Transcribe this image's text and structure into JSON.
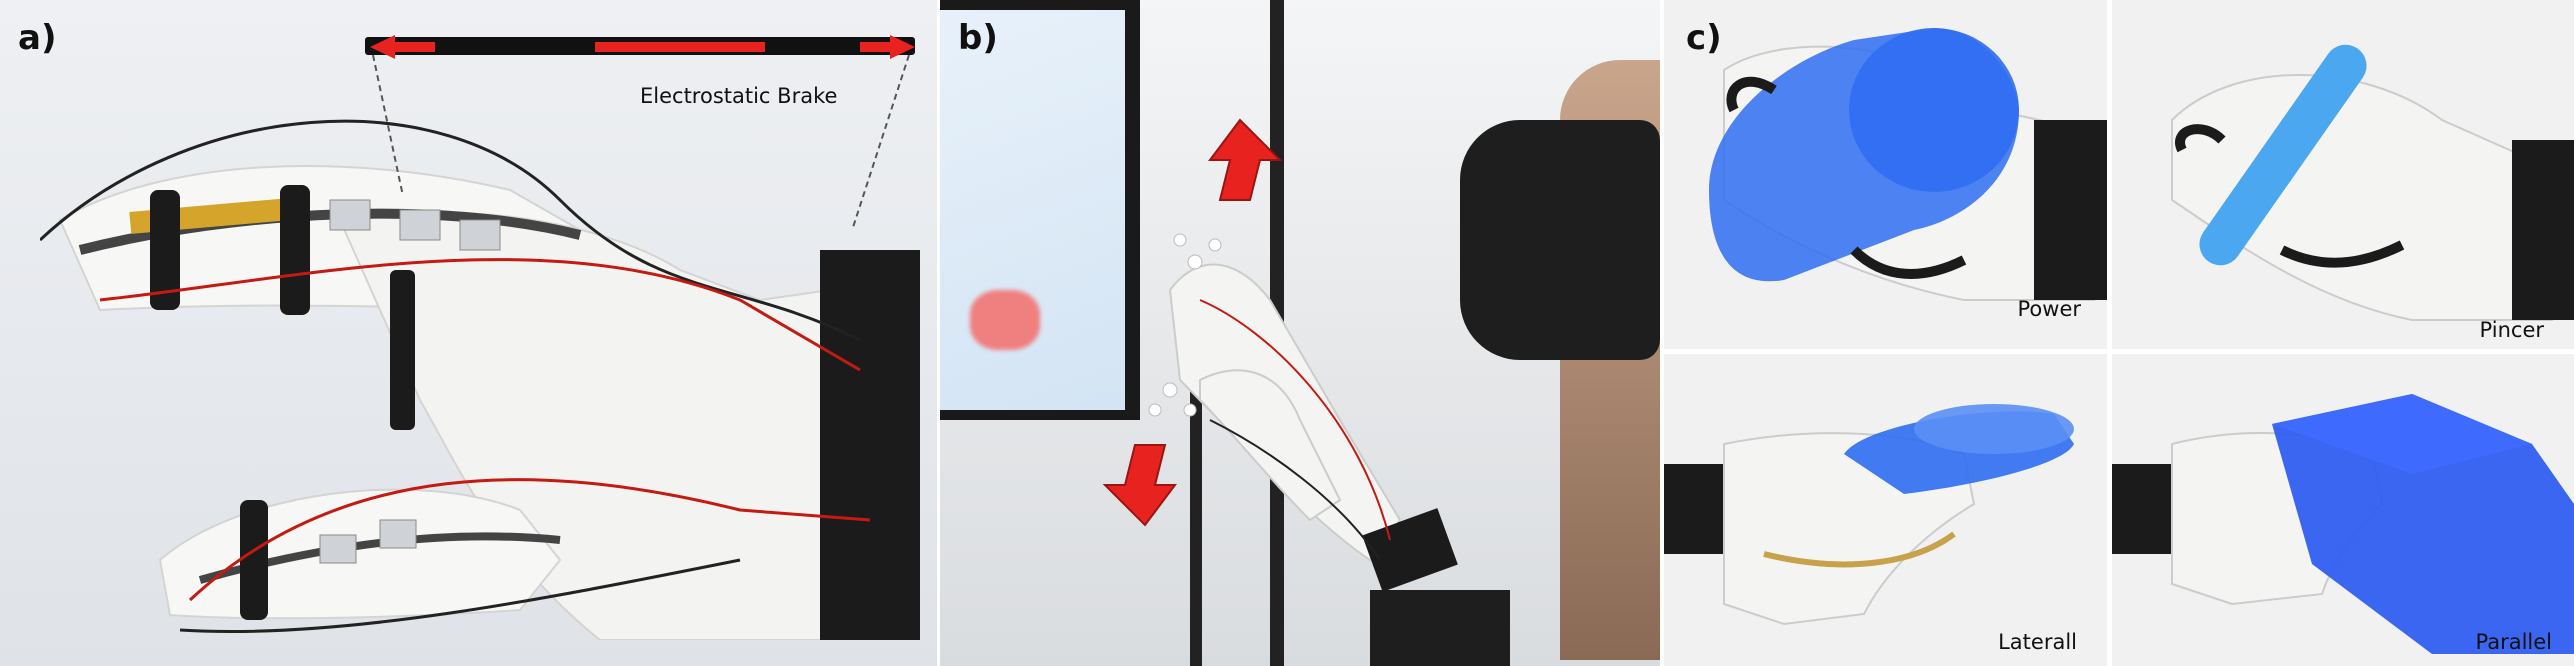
{
  "panels": {
    "a": {
      "letter": "a)",
      "caption": "Electrostatic Brake"
    },
    "b": {
      "letter": "b)"
    },
    "c": {
      "letter": "c)",
      "grasps": [
        {
          "label": "Power"
        },
        {
          "label": "Pincer"
        },
        {
          "label": "Laterall"
        },
        {
          "label": "Parallel"
        }
      ]
    }
  },
  "colors": {
    "glove": "#f6f6f4",
    "strap": "#1b1b1b",
    "arrow_red": "#e8231f",
    "virtual_object_blue": "#2f6df2",
    "wire_red": "#c41a12"
  }
}
